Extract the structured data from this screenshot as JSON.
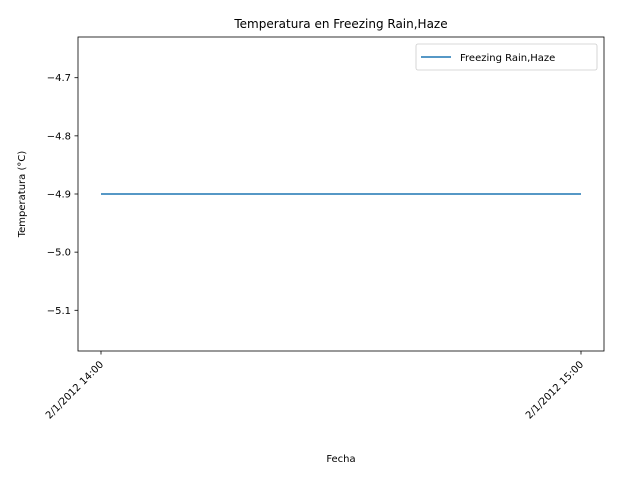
{
  "chart_data": {
    "type": "line",
    "title": "Temperatura en Freezing Rain,Haze",
    "xlabel": "Fecha",
    "ylabel": "Temperatura (°C)",
    "x": [
      "2/1/2012 14:00",
      "2/1/2012 15:00"
    ],
    "series": [
      {
        "name": "Freezing Rain,Haze",
        "values": [
          -4.9,
          -4.9
        ],
        "color": "#1f77b4"
      }
    ],
    "ylim": [
      -5.17,
      -4.63
    ],
    "yticks": [
      -4.7,
      -4.8,
      -4.9,
      -5.0,
      -5.1
    ],
    "ytick_labels": [
      "−4.7",
      "−4.8",
      "−4.9",
      "−5.0",
      "−5.1"
    ],
    "grid": false,
    "legend": "top-right"
  }
}
